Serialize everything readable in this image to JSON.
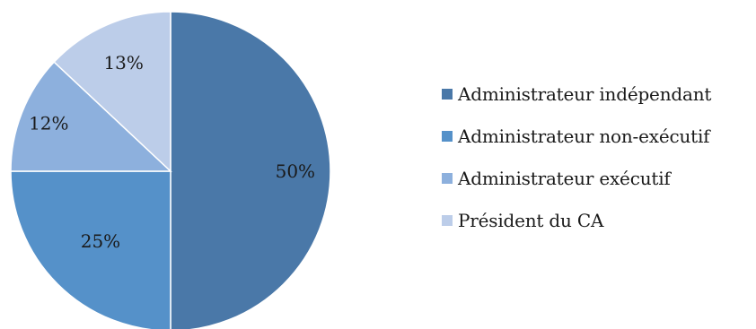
{
  "chart_data": {
    "type": "pie",
    "start_angle_deg": 0,
    "direction": "clockwise",
    "slices": [
      {
        "label": "Administrateur indépendant",
        "value": 50,
        "display": "50%",
        "color": "#4a78a8"
      },
      {
        "label": "Administrateur non-exécutif",
        "value": 25,
        "display": "25%",
        "color": "#5591c9"
      },
      {
        "label": "Administrateur exécutif",
        "value": 12,
        "display": "12%",
        "color": "#8db0dd"
      },
      {
        "label": "Président du CA",
        "value": 13,
        "display": "13%",
        "color": "#bccde9"
      }
    ],
    "legend_position": "right"
  }
}
